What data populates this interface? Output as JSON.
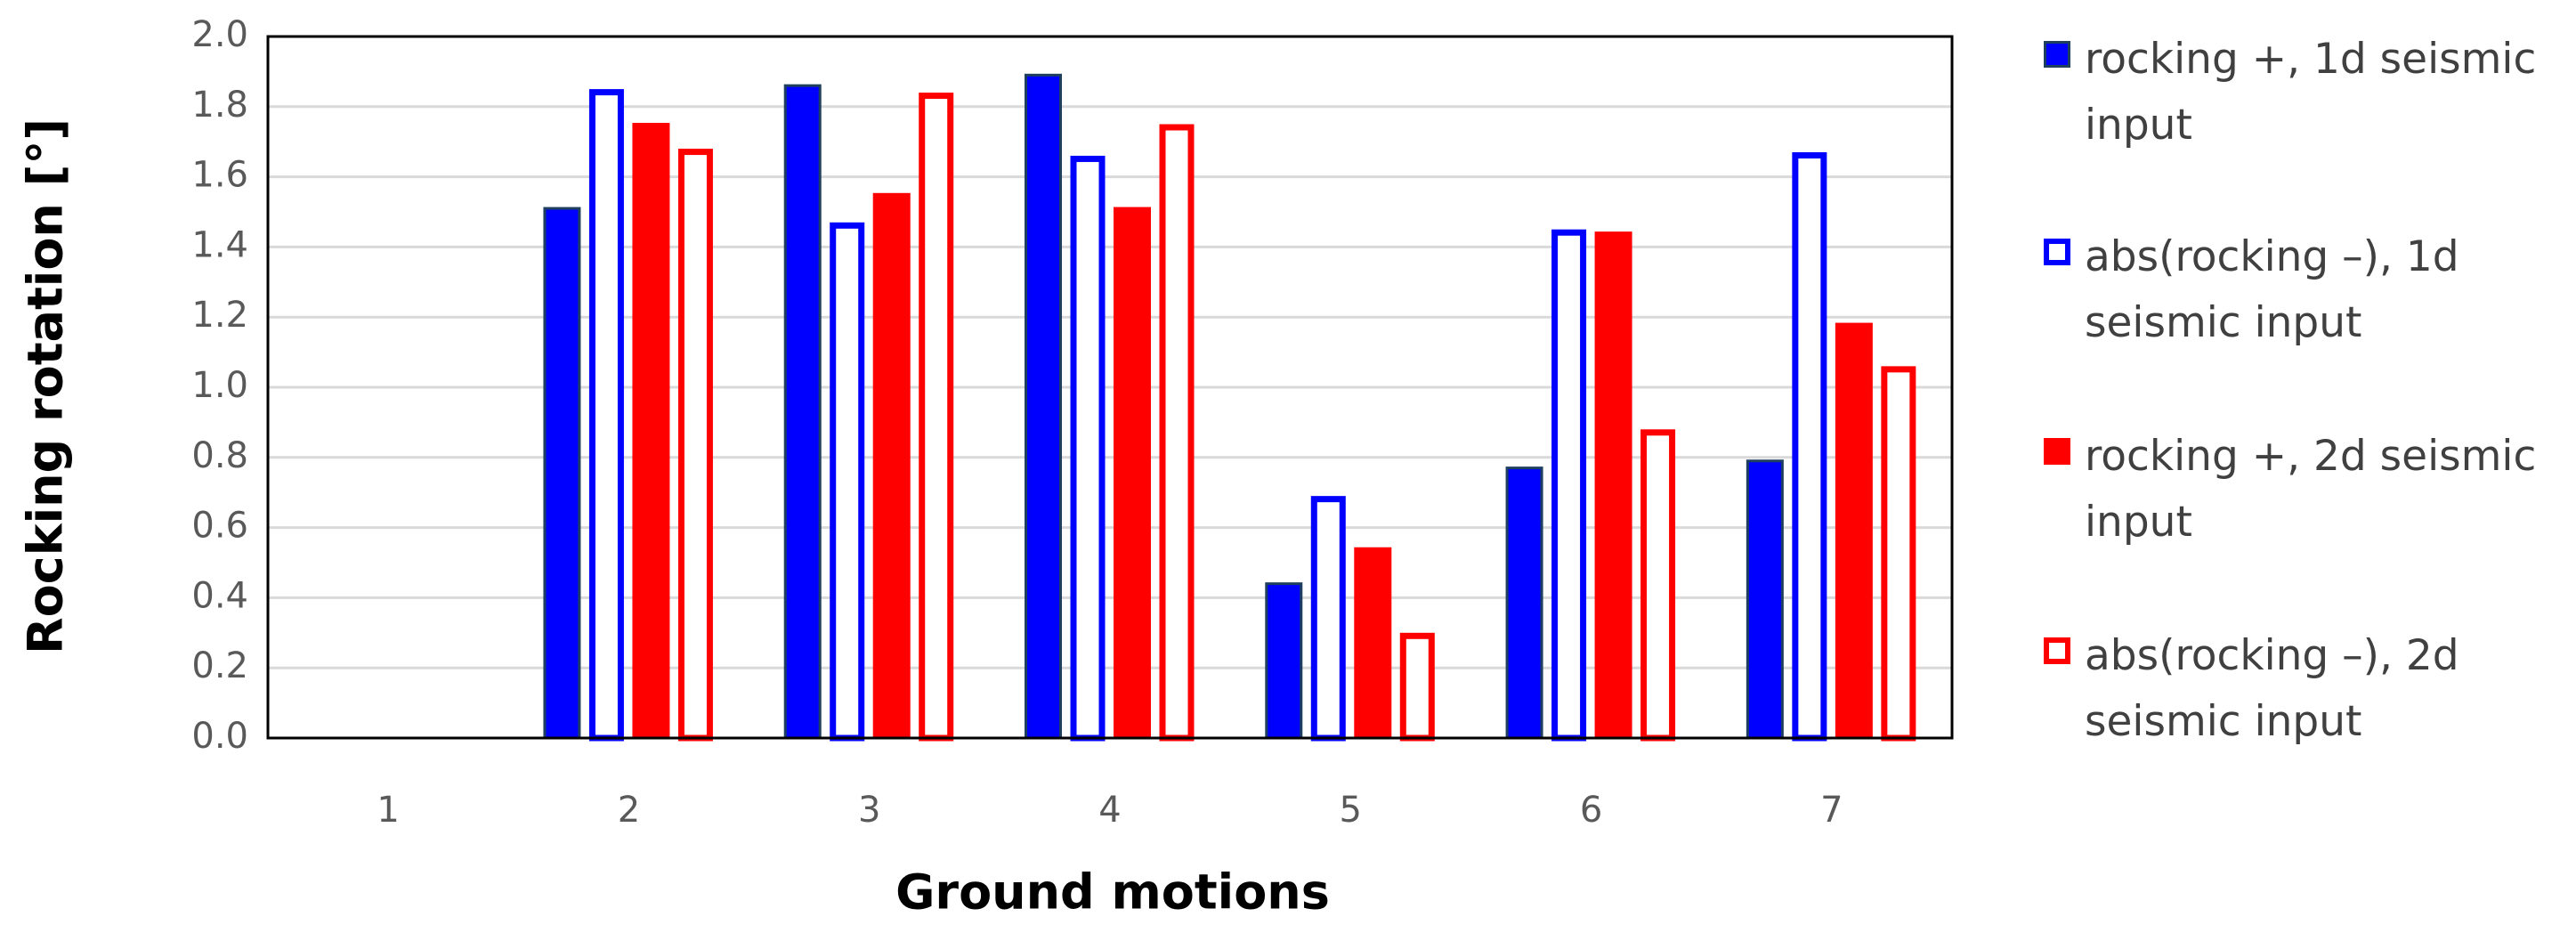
{
  "chart_data": {
    "type": "bar",
    "x_label": "Ground motions",
    "y_label": "Rocking rotation [°]",
    "categories": [
      "1",
      "2",
      "3",
      "4",
      "5",
      "6",
      "7"
    ],
    "series": [
      {
        "name": "rocking +, 1d seismic input",
        "color": "#0000ff",
        "edgecolor": "#1f3f5f",
        "filled": true,
        "values": [
          0,
          1.51,
          1.86,
          1.89,
          0.44,
          0.77,
          0.79
        ]
      },
      {
        "name": "abs(rocking –), 1d seismic input",
        "color": "#0000ff",
        "filled": false,
        "values": [
          0,
          1.85,
          1.47,
          1.66,
          0.69,
          1.45,
          1.67
        ]
      },
      {
        "name": "rocking +, 2d seismic input",
        "color": "#ff0000",
        "edgecolor": "#ff0000",
        "filled": true,
        "values": [
          0,
          1.75,
          1.55,
          1.51,
          0.54,
          1.44,
          1.18
        ]
      },
      {
        "name": "abs(rocking –), 2d seismic input",
        "color": "#ff0000",
        "filled": false,
        "values": [
          0,
          1.68,
          1.84,
          1.75,
          0.3,
          0.88,
          1.06
        ]
      }
    ],
    "ylim": [
      0,
      2
    ],
    "yticks": [
      {
        "value": 0,
        "label": "0.0"
      },
      0.2,
      0.4,
      0.6,
      0.8,
      {
        "value": 1,
        "label": "1.0"
      },
      1.2,
      1.4,
      1.6,
      1.8,
      {
        "value": 2,
        "label": "2.0"
      }
    ],
    "grid": true,
    "legend": "right"
  }
}
